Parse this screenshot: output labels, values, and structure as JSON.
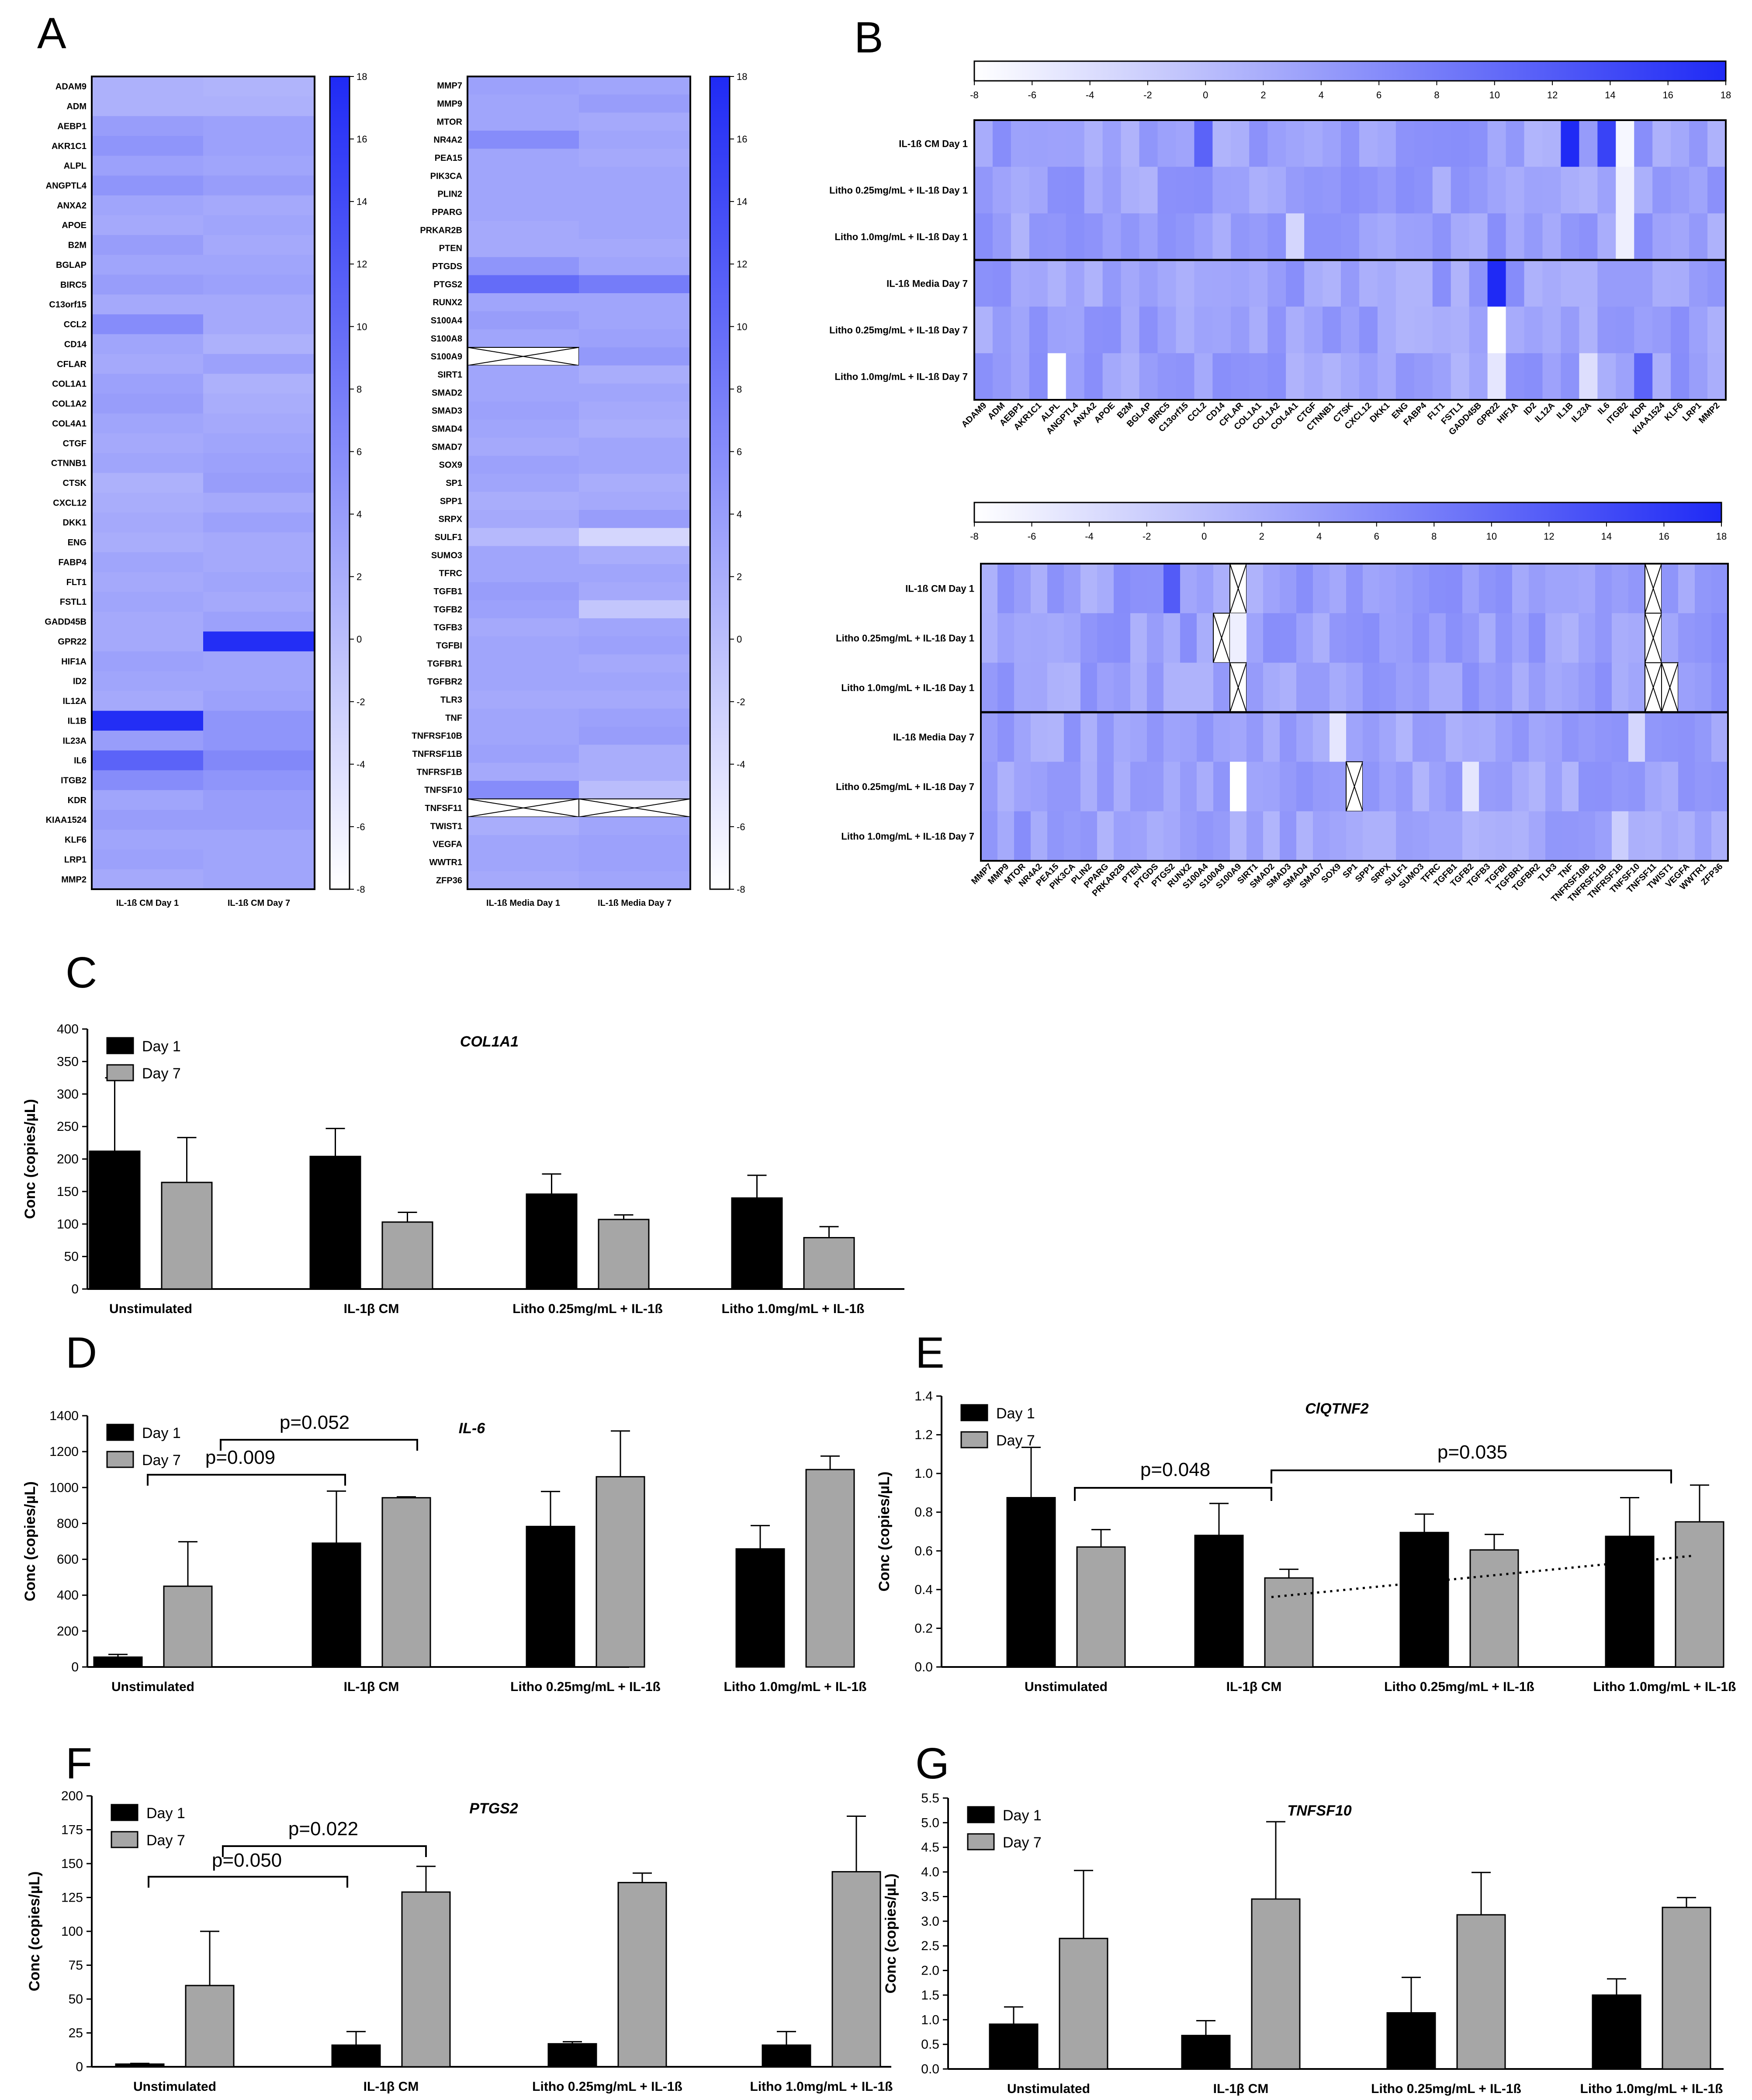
{
  "panel_labels": [
    "A",
    "B",
    "C",
    "D",
    "E",
    "F",
    "G"
  ],
  "colors": {
    "bar_day1": "#000000",
    "bar_day7": "#a6a6a6",
    "heat_min": "#ffffff",
    "heat_max": "#1f2af5",
    "axis": "#000000"
  },
  "heatmap_scale": {
    "min": -8,
    "max": 18,
    "vertical_ticks": [
      "18",
      "16",
      "14",
      "12",
      "10",
      "8",
      "6",
      "4",
      "2",
      "0",
      "-2",
      "-4",
      "-6",
      "-8"
    ],
    "horizontal_ticks": [
      "-8",
      "-6",
      "-4",
      "-2",
      "0",
      "2",
      "4",
      "6",
      "8",
      "10",
      "12",
      "14",
      "16",
      "18"
    ]
  },
  "genes_a": [
    "ADAM9",
    "ADM",
    "AEBP1",
    "AKR1C1",
    "ALPL",
    "ANGPTL4",
    "ANXA2",
    "APOE",
    "B2M",
    "BGLAP",
    "BIRC5",
    "C13orf15",
    "CCL2",
    "CD14",
    "CFLAR",
    "COL1A1",
    "COL1A2",
    "COL4A1",
    "CTGF",
    "CTNNB1",
    "CTSK",
    "CXCL12",
    "DKK1",
    "ENG",
    "FABP4",
    "FLT1",
    "FSTL1",
    "GADD45B",
    "GPR22",
    "HIF1A",
    "ID2",
    "IL12A",
    "IL1B",
    "IL23A",
    "IL6",
    "ITGB2",
    "KDR",
    "KIAA1524",
    "KLF6",
    "LRP1",
    "MMP2"
  ],
  "genes_b": [
    "MMP7",
    "MMP9",
    "MTOR",
    "NR4A2",
    "PEA15",
    "PIK3CA",
    "PLIN2",
    "PPARG",
    "PRKAR2B",
    "PTEN",
    "PTGDS",
    "PTGS2",
    "RUNX2",
    "S100A4",
    "S100A8",
    "S100A9",
    "SIRT1",
    "SMAD2",
    "SMAD3",
    "SMAD4",
    "SMAD7",
    "SOX9",
    "SP1",
    "SPP1",
    "SRPX",
    "SULF1",
    "SUMO3",
    "TFRC",
    "TGFB1",
    "TGFB2",
    "TGFB3",
    "TGFBI",
    "TGFBR1",
    "TGFBR2",
    "TLR3",
    "TNF",
    "TNFRSF10B",
    "TNFRSF11B",
    "TNFRSF1B",
    "TNFSF10",
    "TNFSF11",
    "TWIST1",
    "VEGFA",
    "WWTR1",
    "ZFP36"
  ],
  "panel_a": {
    "left_columns": [
      "IL-1ß CM Day 1",
      "IL-1ß CM Day 7"
    ],
    "right_columns": [
      "IL-1ß Media Day 1",
      "IL-1ß Media Day 7"
    ],
    "left_values": [
      [
        1.5,
        1.2
      ],
      [
        1.5,
        1.5
      ],
      [
        4,
        3.5
      ],
      [
        5,
        3.5
      ],
      [
        3.5,
        3
      ],
      [
        5,
        4
      ],
      [
        3,
        2.5
      ],
      [
        2.5,
        3
      ],
      [
        4,
        2.5
      ],
      [
        3,
        3
      ],
      [
        4,
        3.5
      ],
      [
        2.5,
        2.5
      ],
      [
        6,
        2.5
      ],
      [
        3,
        1.5
      ],
      [
        2.5,
        3.5
      ],
      [
        3.5,
        1.5
      ],
      [
        4,
        2
      ],
      [
        3,
        2.5
      ],
      [
        2.5,
        3
      ],
      [
        3,
        3.5
      ],
      [
        1.5,
        4
      ],
      [
        2,
        2.5
      ],
      [
        2.5,
        3.5
      ],
      [
        2,
        2.5
      ],
      [
        3,
        2.5
      ],
      [
        2.5,
        3
      ],
      [
        3,
        2.5
      ],
      [
        2.5,
        3.5
      ],
      [
        2.5,
        17.5
      ],
      [
        3.5,
        3
      ],
      [
        3,
        3
      ],
      [
        2.5,
        3.5
      ],
      [
        17.5,
        5
      ],
      [
        4,
        5
      ],
      [
        11,
        6.5
      ],
      [
        6,
        5
      ],
      [
        3,
        4
      ],
      [
        4,
        4
      ],
      [
        3,
        3
      ],
      [
        3.5,
        3
      ],
      [
        2.5,
        3
      ]
    ],
    "right_values": [
      [
        3.5,
        3
      ],
      [
        3,
        4
      ],
      [
        3,
        2.5
      ],
      [
        6,
        3
      ],
      [
        3,
        2.5
      ],
      [
        3,
        3
      ],
      [
        3,
        3
      ],
      [
        3,
        3
      ],
      [
        2.5,
        3
      ],
      [
        2.5,
        2.5
      ],
      [
        5,
        3
      ],
      [
        10,
        8
      ],
      [
        3,
        3
      ],
      [
        4,
        3
      ],
      [
        3,
        3.5
      ],
      [
        null,
        4.5
      ],
      [
        3,
        2
      ],
      [
        3,
        3
      ],
      [
        3.5,
        2.5
      ],
      [
        3,
        2
      ],
      [
        2.5,
        3
      ],
      [
        3.5,
        3
      ],
      [
        3,
        2
      ],
      [
        2,
        2.5
      ],
      [
        2.5,
        4
      ],
      [
        0.5,
        -3
      ],
      [
        3,
        2
      ],
      [
        3,
        3
      ],
      [
        4,
        2.5
      ],
      [
        3.5,
        -1
      ],
      [
        2.5,
        3
      ],
      [
        3,
        3.5
      ],
      [
        3,
        2.5
      ],
      [
        3,
        3
      ],
      [
        2.5,
        2.5
      ],
      [
        3,
        3.5
      ],
      [
        3,
        4
      ],
      [
        3.5,
        2
      ],
      [
        2.5,
        2
      ],
      [
        6,
        0
      ],
      [
        null,
        null
      ],
      [
        2,
        3
      ],
      [
        3,
        3.5
      ],
      [
        3,
        3.5
      ],
      [
        2.5,
        3
      ]
    ],
    "x_cells": [
      [
        15,
        0
      ]
    ]
  },
  "panel_b": {
    "rows": [
      "IL-1ß CM Day 1",
      "Litho 0.25mg/mL + IL-1ß Day 1",
      "Litho 1.0mg/mL + IL-1ß Day 1",
      "IL-1ß Media Day 7",
      "Litho 0.25mg/mL + IL-1ß Day 7",
      "Litho 1.0mg/mL + IL-1ß Day 7"
    ]
  },
  "chart_data": [
    {
      "panel": "C",
      "type": "bar",
      "title": "COL1A1",
      "ylabel": "Conc (copies/µL)",
      "categories": [
        "Unstimulated",
        "IL-1β CM",
        "Litho 0.25mg/mL + IL-1ß",
        "Litho 1.0mg/mL + IL-1ß"
      ],
      "ylim": [
        0,
        400
      ],
      "yticks": [
        "0",
        "50",
        "100",
        "150",
        "200",
        "250",
        "300",
        "350",
        "400"
      ],
      "series": [
        {
          "name": "Day 1",
          "values": [
            212,
            204,
            146,
            140
          ],
          "errors": [
            113,
            43,
            31,
            35
          ]
        },
        {
          "name": "Day 7",
          "values": [
            164,
            103,
            107,
            79
          ],
          "errors": [
            69,
            15,
            7,
            17
          ]
        }
      ],
      "annotations": []
    },
    {
      "panel": "D",
      "type": "bar",
      "title": "IL-6",
      "ylabel": "Conc (copies/µL)",
      "categories": [
        "Unstimulated",
        "IL-1β CM",
        "Litho 0.25mg/mL + IL-1ß",
        "Litho 1.0mg/mL + IL-1ß"
      ],
      "ylim": [
        0,
        1400
      ],
      "yticks": [
        "0",
        "200",
        "400",
        "600",
        "800",
        "1000",
        "1200",
        "1400"
      ],
      "series": [
        {
          "name": "Day 1",
          "values": [
            55,
            690,
            783,
            658
          ],
          "errors": [
            15,
            290,
            195,
            130
          ]
        },
        {
          "name": "Day 7",
          "values": [
            450,
            943,
            1060,
            1100
          ],
          "errors": [
            248,
            5,
            255,
            75
          ]
        }
      ],
      "annotations": [
        {
          "text": "p=0.009",
          "from": 0,
          "to": 1,
          "y": 1920,
          "ty": 1875
        },
        {
          "text": "p=0.052",
          "from": 0,
          "to": 1,
          "y": 1850,
          "ty": 1805
        }
      ]
    },
    {
      "panel": "E",
      "type": "bar",
      "title": "ClQTNF2",
      "ylabel": "Conc (copies/µL)",
      "categories": [
        "Unstimulated",
        "IL-1β CM",
        "Litho 0.25mg/mL + IL-1ß",
        "Litho 1.0mg/mL + IL-1ß"
      ],
      "ylim": [
        0,
        1.4
      ],
      "yticks": [
        "0.0",
        "0.2",
        "0.4",
        "0.6",
        "0.8",
        "1.0",
        "1.2",
        "1.4"
      ],
      "series": [
        {
          "name": "Day 1",
          "values": [
            0.875,
            0.68,
            0.695,
            0.675
          ],
          "errors": [
            0.26,
            0.165,
            0.095,
            0.2
          ]
        },
        {
          "name": "Day 7",
          "values": [
            0.62,
            0.46,
            0.605,
            0.75
          ],
          "errors": [
            0.09,
            0.045,
            0.08,
            0.19
          ]
        }
      ],
      "annotations": [
        {
          "text": "p=0.048"
        },
        {
          "text": "p=0.035"
        }
      ]
    },
    {
      "panel": "F",
      "type": "bar",
      "title": "PTGS2",
      "ylabel": "Conc (copies/µL)",
      "categories": [
        "Unstimulated",
        "IL-1β CM",
        "Litho 0.25mg/mL + IL-1ß",
        "Litho 1.0mg/mL + IL-1ß"
      ],
      "ylim": [
        0,
        200
      ],
      "yticks": [
        "0",
        "25",
        "50",
        "75",
        "100",
        "125",
        "150",
        "175",
        "200"
      ],
      "series": [
        {
          "name": "Day 1",
          "values": [
            2,
            16,
            17,
            16
          ],
          "errors": [
            0.5,
            10,
            1.5,
            10
          ]
        },
        {
          "name": "Day 7",
          "values": [
            60,
            129,
            136,
            144
          ],
          "errors": [
            40,
            19,
            7,
            41
          ]
        }
      ],
      "annotations": [
        {
          "text": "p=0.050"
        },
        {
          "text": "p=0.022"
        }
      ]
    },
    {
      "panel": "G",
      "type": "bar",
      "title": "TNFSF10",
      "ylabel": "Conc (copies/µL)",
      "categories": [
        "Unstimulated",
        "IL-1β CM",
        "Litho 0.25mg/mL + IL-1ß",
        "Litho 1.0mg/mL + IL-1ß"
      ],
      "ylim": [
        0,
        5.5
      ],
      "yticks": [
        "0.0",
        "0.5",
        "1.0",
        "1.5",
        "2.0",
        "2.5",
        "3.0",
        "3.5",
        "4.0",
        "4.5",
        "5.0",
        "5.5"
      ],
      "series": [
        {
          "name": "Day 1",
          "values": [
            0.91,
            0.68,
            1.14,
            1.5
          ],
          "errors": [
            0.35,
            0.3,
            0.72,
            0.33
          ]
        },
        {
          "name": "Day 7",
          "values": [
            2.65,
            3.45,
            3.13,
            3.28
          ],
          "errors": [
            1.38,
            1.57,
            0.86,
            0.2
          ]
        }
      ],
      "annotations": []
    }
  ]
}
